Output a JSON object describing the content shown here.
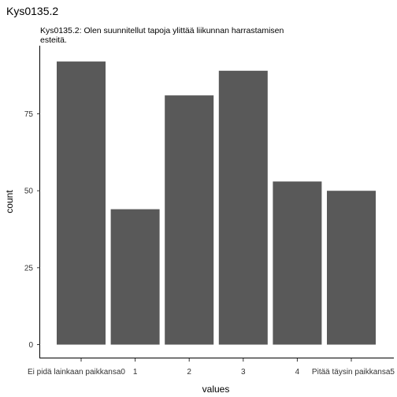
{
  "chart_data": {
    "type": "bar",
    "title": "Kys0135.2",
    "subtitle_lines": [
      "Kys0135.2: Olen suunnitellut tapoja ylittää liikunnan harrastamisen",
      "esteitä."
    ],
    "xlabel": "values",
    "ylabel": "count",
    "categories": [
      "Ei pidä lainkaan paikkansa0",
      "1",
      "2",
      "3",
      "4",
      "Pitää täysin paikkansa5"
    ],
    "values": [
      92,
      44,
      81,
      89,
      53,
      50
    ],
    "ylim": [
      0,
      96.6
    ],
    "yticks": [
      0,
      25,
      50,
      75
    ],
    "bar_color": "#595959",
    "grid": false
  }
}
